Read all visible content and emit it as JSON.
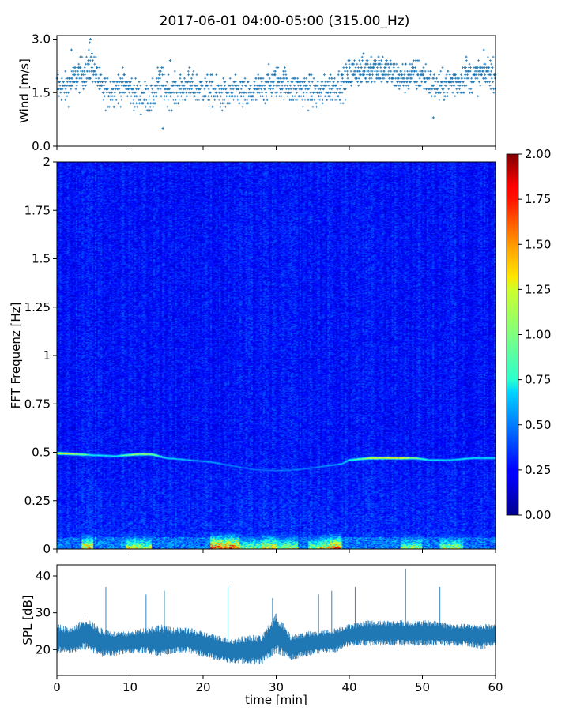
{
  "title": "2017-06-01 04:00-05:00 (315.00_Hz)",
  "chart_data": [
    {
      "type": "scatter",
      "panel": "wind",
      "ylabel": "Wind [m/s]",
      "xlim": [
        0,
        60
      ],
      "ylim": [
        0,
        3.1
      ],
      "y_ticks": [
        0.0,
        1.5,
        3.0
      ],
      "y_tick_labels": [
        "0.0",
        "1.5",
        "3.0"
      ],
      "marker_color": "#1f77b4",
      "marker": "+",
      "y_quantization_step": 0.1,
      "trend": [
        {
          "x": 0,
          "y": 1.7
        },
        {
          "x": 1,
          "y": 1.6
        },
        {
          "x": 2,
          "y": 1.8
        },
        {
          "x": 3,
          "y": 2.0
        },
        {
          "x": 4,
          "y": 2.1
        },
        {
          "x": 5,
          "y": 2.3
        },
        {
          "x": 6,
          "y": 1.6
        },
        {
          "x": 7,
          "y": 1.5
        },
        {
          "x": 8,
          "y": 1.6
        },
        {
          "x": 9,
          "y": 1.7
        },
        {
          "x": 10,
          "y": 1.6
        },
        {
          "x": 11,
          "y": 1.4
        },
        {
          "x": 12,
          "y": 1.4
        },
        {
          "x": 13,
          "y": 1.3
        },
        {
          "x": 14,
          "y": 1.8
        },
        {
          "x": 15,
          "y": 1.6
        },
        {
          "x": 16,
          "y": 1.5
        },
        {
          "x": 17,
          "y": 1.6
        },
        {
          "x": 18,
          "y": 1.7
        },
        {
          "x": 19,
          "y": 1.6
        },
        {
          "x": 20,
          "y": 1.6
        },
        {
          "x": 21,
          "y": 1.5
        },
        {
          "x": 22,
          "y": 1.5
        },
        {
          "x": 23,
          "y": 1.4
        },
        {
          "x": 24,
          "y": 1.5
        },
        {
          "x": 25,
          "y": 1.5
        },
        {
          "x": 26,
          "y": 1.4
        },
        {
          "x": 27,
          "y": 1.5
        },
        {
          "x": 28,
          "y": 1.6
        },
        {
          "x": 29,
          "y": 1.7
        },
        {
          "x": 30,
          "y": 1.8
        },
        {
          "x": 31,
          "y": 1.8
        },
        {
          "x": 32,
          "y": 1.6
        },
        {
          "x": 33,
          "y": 1.6
        },
        {
          "x": 34,
          "y": 1.6
        },
        {
          "x": 35,
          "y": 1.5
        },
        {
          "x": 36,
          "y": 1.5
        },
        {
          "x": 37,
          "y": 1.6
        },
        {
          "x": 38,
          "y": 1.7
        },
        {
          "x": 39,
          "y": 1.7
        },
        {
          "x": 40,
          "y": 2.0
        },
        {
          "x": 41,
          "y": 2.1
        },
        {
          "x": 42,
          "y": 2.1
        },
        {
          "x": 43,
          "y": 2.2
        },
        {
          "x": 44,
          "y": 2.2
        },
        {
          "x": 45,
          "y": 2.1
        },
        {
          "x": 46,
          "y": 2.0
        },
        {
          "x": 47,
          "y": 1.9
        },
        {
          "x": 48,
          "y": 2.0
        },
        {
          "x": 49,
          "y": 2.0
        },
        {
          "x": 50,
          "y": 2.0
        },
        {
          "x": 51,
          "y": 1.8
        },
        {
          "x": 52,
          "y": 1.6
        },
        {
          "x": 53,
          "y": 1.7
        },
        {
          "x": 54,
          "y": 1.8
        },
        {
          "x": 55,
          "y": 1.8
        },
        {
          "x": 56,
          "y": 2.0
        },
        {
          "x": 57,
          "y": 1.9
        },
        {
          "x": 58,
          "y": 2.0
        },
        {
          "x": 59,
          "y": 2.1
        },
        {
          "x": 60,
          "y": 2.0
        }
      ],
      "peaks": [
        {
          "x": 2.0,
          "y": 2.7
        },
        {
          "x": 4.5,
          "y": 2.9
        },
        {
          "x": 4.6,
          "y": 3.0
        },
        {
          "x": 14.5,
          "y": 0.5
        },
        {
          "x": 15.5,
          "y": 2.4
        },
        {
          "x": 43.0,
          "y": 2.5
        },
        {
          "x": 44.0,
          "y": 2.5
        },
        {
          "x": 51.5,
          "y": 0.8
        },
        {
          "x": 56.0,
          "y": 2.5
        }
      ]
    },
    {
      "type": "heatmap",
      "panel": "spectrogram",
      "ylabel": "FFT Frequenz [Hz]",
      "xlim": [
        0,
        60
      ],
      "ylim": [
        0,
        2
      ],
      "y_ticks": [
        0,
        0.25,
        0.5,
        0.75,
        1,
        1.25,
        1.5,
        1.75,
        2
      ],
      "y_tick_labels": [
        "0",
        "0.25",
        "0.5",
        "0.75",
        "1",
        "1.25",
        "1.5",
        "1.75",
        "2"
      ],
      "colormap": "jet",
      "colorbar": {
        "vmin": 0,
        "vmax": 2,
        "ticks": [
          0.0,
          0.25,
          0.5,
          0.75,
          1.0,
          1.25,
          1.5,
          1.75,
          2.0
        ],
        "tick_labels": [
          "0.00",
          "0.25",
          "0.50",
          "0.75",
          "1.00",
          "1.25",
          "1.50",
          "1.75",
          "2.00"
        ],
        "placement": "right"
      },
      "background_level": 0.28,
      "tonal_line": [
        {
          "x": 0,
          "freq": 0.495,
          "level": 1.55
        },
        {
          "x": 3,
          "freq": 0.49,
          "level": 1.2
        },
        {
          "x": 5,
          "freq": 0.485,
          "level": 0.9
        },
        {
          "x": 8,
          "freq": 0.48,
          "level": 0.85
        },
        {
          "x": 11,
          "freq": 0.49,
          "level": 1.3
        },
        {
          "x": 13,
          "freq": 0.49,
          "level": 1.25
        },
        {
          "x": 15,
          "freq": 0.47,
          "level": 0.8
        },
        {
          "x": 18,
          "freq": 0.46,
          "level": 0.7
        },
        {
          "x": 21,
          "freq": 0.45,
          "level": 0.65
        },
        {
          "x": 24,
          "freq": 0.43,
          "level": 0.6
        },
        {
          "x": 27,
          "freq": 0.41,
          "level": 0.55
        },
        {
          "x": 30,
          "freq": 0.405,
          "level": 0.55
        },
        {
          "x": 33,
          "freq": 0.41,
          "level": 0.6
        },
        {
          "x": 36,
          "freq": 0.425,
          "level": 0.6
        },
        {
          "x": 39,
          "freq": 0.44,
          "level": 0.7
        },
        {
          "x": 40,
          "freq": 0.46,
          "level": 0.9
        },
        {
          "x": 43,
          "freq": 0.47,
          "level": 1.4
        },
        {
          "x": 47,
          "freq": 0.47,
          "level": 1.5
        },
        {
          "x": 49,
          "freq": 0.47,
          "level": 1.2
        },
        {
          "x": 51,
          "freq": 0.46,
          "level": 0.8
        },
        {
          "x": 54,
          "freq": 0.46,
          "level": 0.8
        },
        {
          "x": 57,
          "freq": 0.47,
          "level": 0.85
        },
        {
          "x": 60,
          "freq": 0.47,
          "level": 0.85
        }
      ],
      "low_frequency_bursts": [
        {
          "x0": 3.5,
          "x1": 5.0,
          "level": 1.6
        },
        {
          "x0": 9.5,
          "x1": 11.5,
          "level": 1.4
        },
        {
          "x0": 11.5,
          "x1": 13.0,
          "level": 1.3
        },
        {
          "x0": 21.0,
          "x1": 25.0,
          "level": 1.9
        },
        {
          "x0": 25.0,
          "x1": 28.0,
          "level": 1.2
        },
        {
          "x0": 28.0,
          "x1": 30.0,
          "level": 1.6
        },
        {
          "x0": 30.0,
          "x1": 33.0,
          "level": 1.3
        },
        {
          "x0": 34.5,
          "x1": 36.0,
          "level": 1.2
        },
        {
          "x0": 36.0,
          "x1": 37.5,
          "level": 1.5
        },
        {
          "x0": 37.5,
          "x1": 39.0,
          "level": 1.8
        },
        {
          "x0": 47.0,
          "x1": 50.0,
          "level": 1.3
        },
        {
          "x0": 52.5,
          "x1": 55.5,
          "level": 1.3
        }
      ]
    },
    {
      "type": "area",
      "panel": "spl",
      "xlabel": "time [min]",
      "ylabel": "SPL [dB]",
      "xlim": [
        0,
        60
      ],
      "ylim": [
        13,
        43
      ],
      "x_ticks": [
        0,
        10,
        20,
        30,
        40,
        50,
        60
      ],
      "x_tick_labels": [
        "0",
        "10",
        "20",
        "30",
        "40",
        "50",
        "60"
      ],
      "y_ticks": [
        20,
        30,
        40
      ],
      "y_tick_labels": [
        "20",
        "30",
        "40"
      ],
      "line_color": "#1f77b4",
      "envelope": [
        {
          "x": 0,
          "low": 19,
          "high": 27
        },
        {
          "x": 2,
          "low": 19,
          "high": 26
        },
        {
          "x": 4,
          "low": 20,
          "high": 29
        },
        {
          "x": 6,
          "low": 18,
          "high": 26
        },
        {
          "x": 8,
          "low": 18,
          "high": 25
        },
        {
          "x": 10,
          "low": 19,
          "high": 25
        },
        {
          "x": 12,
          "low": 19,
          "high": 26
        },
        {
          "x": 14,
          "low": 18,
          "high": 27
        },
        {
          "x": 16,
          "low": 19,
          "high": 26
        },
        {
          "x": 18,
          "low": 19,
          "high": 26
        },
        {
          "x": 20,
          "low": 18,
          "high": 25
        },
        {
          "x": 22,
          "low": 17,
          "high": 24
        },
        {
          "x": 24,
          "low": 16,
          "high": 23
        },
        {
          "x": 26,
          "low": 16,
          "high": 24
        },
        {
          "x": 28,
          "low": 16,
          "high": 24
        },
        {
          "x": 30,
          "low": 19,
          "high": 30
        },
        {
          "x": 32,
          "low": 17,
          "high": 24
        },
        {
          "x": 34,
          "low": 18,
          "high": 25
        },
        {
          "x": 36,
          "low": 19,
          "high": 25
        },
        {
          "x": 38,
          "low": 19,
          "high": 26
        },
        {
          "x": 40,
          "low": 21,
          "high": 27
        },
        {
          "x": 42,
          "low": 21,
          "high": 28
        },
        {
          "x": 44,
          "low": 21,
          "high": 28
        },
        {
          "x": 46,
          "low": 21,
          "high": 28
        },
        {
          "x": 48,
          "low": 21,
          "high": 28
        },
        {
          "x": 50,
          "low": 21,
          "high": 28
        },
        {
          "x": 52,
          "low": 21,
          "high": 28
        },
        {
          "x": 54,
          "low": 21,
          "high": 27
        },
        {
          "x": 56,
          "low": 21,
          "high": 27
        },
        {
          "x": 58,
          "low": 20,
          "high": 27
        },
        {
          "x": 60,
          "low": 21,
          "high": 27
        }
      ],
      "spikes": [
        {
          "x": 6.7,
          "y": 37
        },
        {
          "x": 12.2,
          "y": 35
        },
        {
          "x": 14.7,
          "y": 36
        },
        {
          "x": 23.4,
          "y": 37
        },
        {
          "x": 29.5,
          "y": 34
        },
        {
          "x": 35.8,
          "y": 35
        },
        {
          "x": 37.6,
          "y": 36
        },
        {
          "x": 40.8,
          "y": 37
        },
        {
          "x": 47.7,
          "y": 42
        },
        {
          "x": 52.4,
          "y": 37
        }
      ]
    }
  ]
}
